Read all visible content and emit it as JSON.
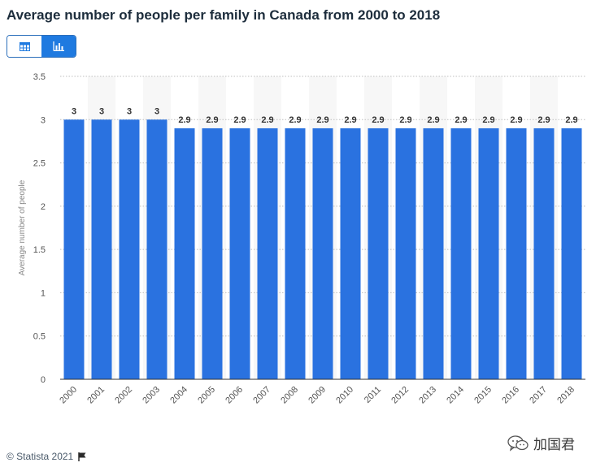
{
  "header": {
    "title": "Average number of people per family in Canada from 2000 to 2018"
  },
  "view_toggle": {
    "table_icon": "table-icon",
    "chart_icon": "bar-chart-icon",
    "active": "chart"
  },
  "chart_data": {
    "type": "bar",
    "title": "Average number of people per family in Canada from 2000 to 2018",
    "xlabel": "",
    "ylabel": "Average number of people",
    "categories": [
      "2000",
      "2001",
      "2002",
      "2003",
      "2004",
      "2005",
      "2006",
      "2007",
      "2008",
      "2009",
      "2010",
      "2011",
      "2012",
      "2013",
      "2014",
      "2015",
      "2016",
      "2017",
      "2018"
    ],
    "values": [
      3,
      3,
      3,
      3,
      2.9,
      2.9,
      2.9,
      2.9,
      2.9,
      2.9,
      2.9,
      2.9,
      2.9,
      2.9,
      2.9,
      2.9,
      2.9,
      2.9,
      2.9
    ],
    "labels": [
      "3",
      "3",
      "3",
      "3",
      "2.9",
      "2.9",
      "2.9",
      "2.9",
      "2.9",
      "2.9",
      "2.9",
      "2.9",
      "2.9",
      "2.9",
      "2.9",
      "2.9",
      "2.9",
      "2.9",
      "2.9"
    ],
    "ylim": [
      0,
      3.5
    ],
    "yticks": [
      "0",
      "0.5",
      "1",
      "1.5",
      "2",
      "2.5",
      "3",
      "3.5"
    ],
    "grid": true,
    "bar_color": "#2a72e0",
    "band_color": "#f7f7f7"
  },
  "footer": {
    "copyright": "© Statista 2021",
    "flag_icon": "flag-icon"
  },
  "watermark": {
    "text": "加国君",
    "icon": "wechat-icon"
  }
}
